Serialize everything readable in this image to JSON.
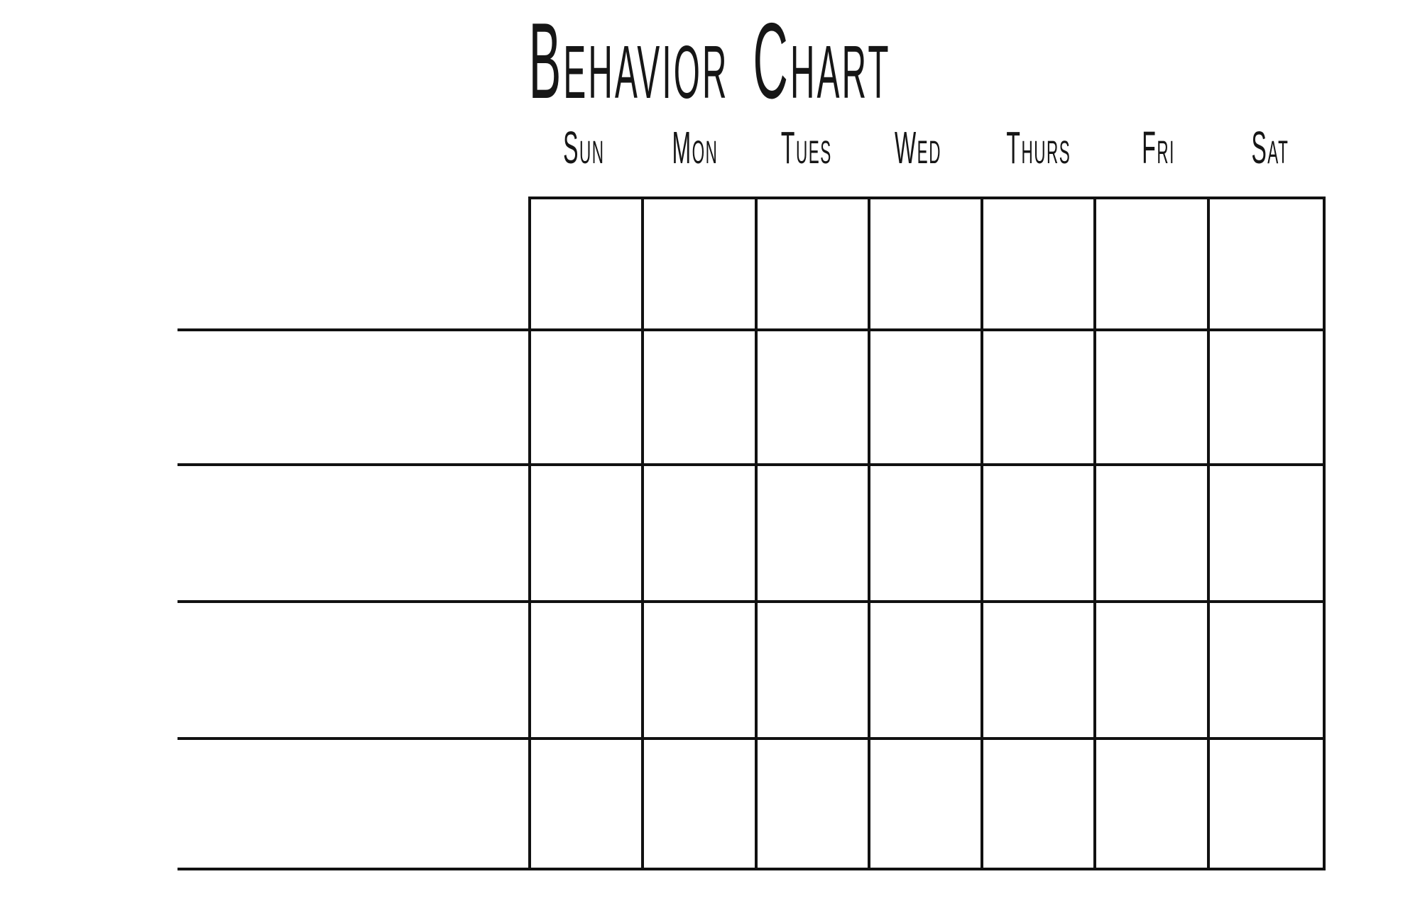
{
  "page": {
    "title": "Behavior Chart",
    "background_color": "#ffffff",
    "line_color": "#111111",
    "text_color": "#161616"
  },
  "grid": {
    "day_headers": [
      "Sun",
      "Mon",
      "Tues",
      "Wed",
      "Thurs",
      "Fri",
      "Sat"
    ],
    "column_count": 7,
    "row_count": 5,
    "cells_blank": true,
    "behavior_write_in_lines": 5
  }
}
